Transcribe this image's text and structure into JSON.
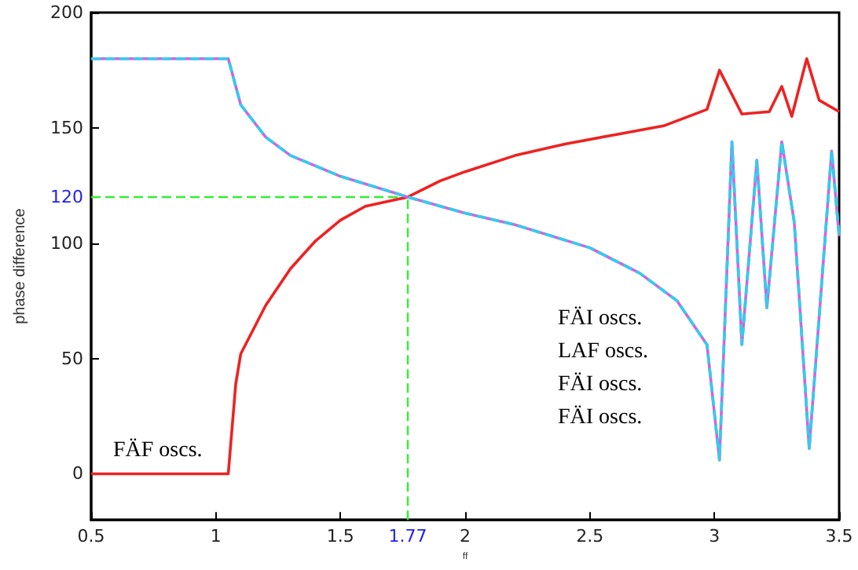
{
  "chart_data": {
    "type": "line",
    "xlabel": "ff",
    "ylabel": "phase difference",
    "xlim": [
      0.5,
      3.5
    ],
    "xticks": [
      0.5,
      1,
      1.5,
      2,
      2.5,
      3,
      3.5
    ],
    "ylim": [
      -20,
      200
    ],
    "yticks": [
      0,
      50,
      100,
      150,
      200
    ],
    "grid": false,
    "marker": "none",
    "series": [
      {
        "color": "#ee2222",
        "line_style": "solid",
        "x": [
          0.5,
          1.05,
          1.08,
          1.1,
          1.2,
          1.3,
          1.4,
          1.5,
          1.6,
          1.77,
          1.9,
          2.0,
          2.2,
          2.4,
          2.6,
          2.8,
          2.97,
          3.02,
          3.11,
          3.22,
          3.27,
          3.31,
          3.37,
          3.42,
          3.5
        ],
        "values": [
          0,
          0,
          39,
          52,
          73,
          89,
          101,
          110,
          116,
          120,
          127,
          131,
          138,
          143,
          147,
          151,
          158,
          175,
          156,
          157,
          168,
          155,
          180,
          162,
          157
        ]
      },
      {
        "color": "#cc66dd",
        "line_style": "solid",
        "x": [
          0.5,
          1.05,
          1.1,
          1.2,
          1.3,
          1.5,
          1.77,
          2.0,
          2.2,
          2.5,
          2.7,
          2.85,
          2.97,
          3.02,
          3.07,
          3.11,
          3.17,
          3.21,
          3.27,
          3.32,
          3.38,
          3.47,
          3.5
        ],
        "values": [
          180,
          180,
          160,
          146,
          138,
          129,
          120,
          113,
          108,
          98,
          87,
          75,
          56,
          6,
          144,
          56,
          136,
          72,
          144,
          109,
          11,
          140,
          103
        ]
      },
      {
        "color": "#33ccee",
        "line_style": "dashed",
        "x": [
          0.5,
          1.05,
          1.1,
          1.2,
          1.3,
          1.5,
          1.77,
          2.0,
          2.2,
          2.5,
          2.7,
          2.85,
          2.97,
          3.02,
          3.07,
          3.11,
          3.17,
          3.21,
          3.27,
          3.32,
          3.38,
          3.47,
          3.5
        ],
        "values": [
          180,
          180,
          160,
          146,
          138,
          129,
          120,
          113,
          108,
          98,
          87,
          75,
          56,
          6,
          144,
          56,
          136,
          72,
          144,
          109,
          11,
          140,
          103
        ]
      }
    ],
    "ref_lines": [
      {
        "axis": "y",
        "value": 120,
        "label": "120",
        "color": "#33ee33",
        "line_style": "dashed"
      },
      {
        "axis": "x",
        "value": 1.77,
        "label": "1.77",
        "color": "#33ee33",
        "line_style": "dashed"
      }
    ],
    "annotations": [
      "FÄF oscs.",
      "FÄI oscs.",
      "LAF oscs.",
      "FÄI oscs.",
      "FÄI oscs."
    ]
  }
}
